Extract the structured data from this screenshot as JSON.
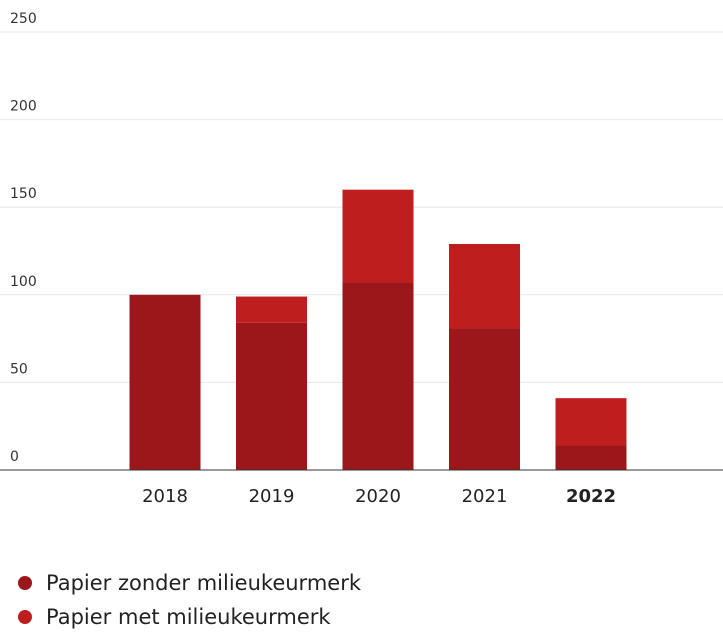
{
  "chart_data": {
    "type": "bar",
    "stacked": true,
    "categories": [
      "2018",
      "2019",
      "2020",
      "2021",
      "2022"
    ],
    "highlight_category": "2022",
    "series": [
      {
        "name": "Papier zonder milieukeurmerk",
        "color": "#9b1719",
        "values": [
          100,
          84,
          107,
          81,
          14
        ]
      },
      {
        "name": "Papier met milieukeurmerk",
        "color": "#bf1e1f",
        "values": [
          0,
          15,
          53,
          48,
          27
        ]
      }
    ],
    "ylim": [
      0,
      250
    ],
    "yticks": [
      0,
      50,
      100,
      150,
      200,
      250
    ],
    "grid": true,
    "legend_position": "bottom-left"
  }
}
